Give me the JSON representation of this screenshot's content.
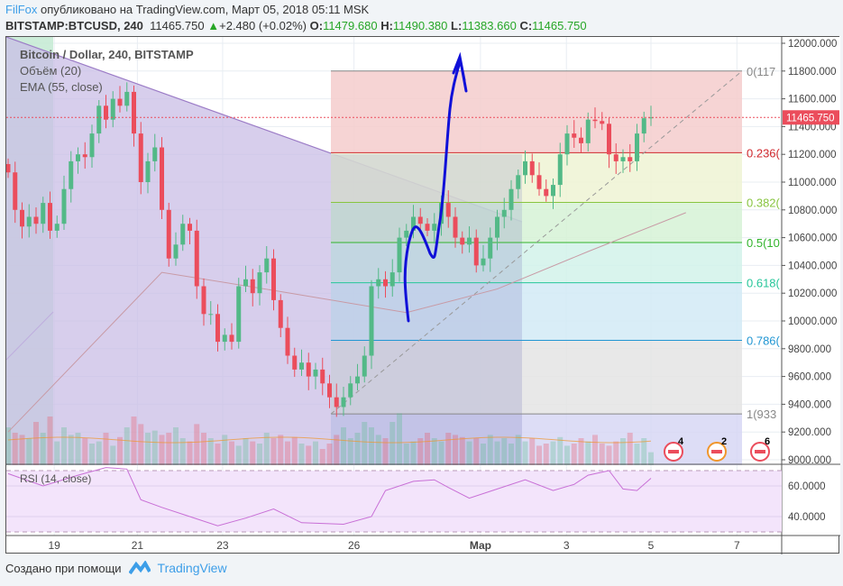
{
  "header": {
    "author": "FilFox",
    "published": "опубликовано на TradingView.com, Март 05, 2018 05:11 MSK",
    "symbol": "BITSTAMP:BTCUSD, 240",
    "last": "11465.750",
    "change": "+2.480 (+0.02%)",
    "o_label": "O:",
    "o": "11479.680",
    "h_label": "H:",
    "h": "11490.380",
    "l_label": "L:",
    "l": "11383.660",
    "c_label": "C:",
    "c": "11465.750"
  },
  "legend": {
    "main": "Bitcoin / Dollar, 240, BITSTAMP",
    "volume": "Объём (20)",
    "ema": "EMA (55, close)",
    "rsi": "RSI (14, close)"
  },
  "footer": {
    "created": "Создано при помощи",
    "brand": "TradingView"
  },
  "colors": {
    "up": "#53b987",
    "down": "#eb4d5c",
    "ema": "#c89aa5",
    "rsi": "#c86fd6",
    "arrow": "#1010d8",
    "accent": "#3d9ee8"
  },
  "chart_data": {
    "type": "candlestick",
    "y_axis": {
      "range": [
        9000,
        12000
      ],
      "ticks": [
        12000,
        11800,
        11600,
        11400,
        11200,
        11000,
        10800,
        10600,
        10400,
        10200,
        10000,
        9800,
        9600,
        9400,
        9200,
        9000
      ],
      "tick_labels": [
        "12000.000",
        "11800.000",
        "11600.000",
        "11400.000",
        "11200.000",
        "11000.000",
        "10800.000",
        "10600.000",
        "10400.000",
        "10200.000",
        "10000.000",
        "9800.000",
        "9600.000",
        "9400.000",
        "9200.000",
        "9000.000"
      ]
    },
    "x_axis": {
      "tick_labels": [
        "19",
        "21",
        "23",
        "26",
        "Мар",
        "3",
        "5",
        "7"
      ],
      "tick_candle_index": [
        6.6,
        18.5,
        30.7,
        49.5,
        67.6,
        79.9,
        92,
        104.3
      ]
    },
    "last_price_label": "11465.750",
    "closes": [
      11070,
      10800,
      10680,
      10750,
      10700,
      10850,
      10650,
      10700,
      10950,
      11150,
      11200,
      11180,
      11350,
      11550,
      11450,
      11600,
      11550,
      11650,
      11350,
      11000,
      11150,
      11250,
      10800,
      10450,
      10550,
      10700,
      10650,
      10250,
      10050,
      10050,
      9850,
      9900,
      9850,
      10250,
      10300,
      10200,
      10350,
      10450,
      10150,
      9950,
      9750,
      9650,
      9700,
      9600,
      9650,
      9550,
      9450,
      9380,
      9450,
      9550,
      9600,
      9750,
      10250,
      10300,
      10250,
      10350,
      10600,
      10650,
      10750,
      10700,
      10650,
      10700,
      10850,
      10750,
      10600,
      10550,
      10600,
      10400,
      10450,
      10600,
      10750,
      10800,
      10950,
      11050,
      11150,
      11050,
      10950,
      10900,
      10980,
      11200,
      11350,
      11320,
      11280,
      11450,
      11440,
      11420,
      11200,
      11150,
      11180,
      11150,
      11350,
      11460,
      11466
    ],
    "volume_relative": [
      35,
      30,
      28,
      25,
      40,
      30,
      45,
      22,
      35,
      28,
      30,
      25,
      20,
      22,
      30,
      18,
      26,
      35,
      45,
      38,
      30,
      32,
      28,
      30,
      35,
      25,
      22,
      38,
      30,
      25,
      20,
      28,
      22,
      18,
      25,
      22,
      20,
      30,
      25,
      28,
      22,
      26,
      20,
      18,
      22,
      15,
      20,
      28,
      35,
      25,
      30,
      40,
      35,
      28,
      25,
      40,
      48,
      20,
      22,
      25,
      30,
      25,
      22,
      30,
      28,
      26,
      22,
      25,
      20,
      28,
      22,
      25,
      20,
      28,
      22,
      25,
      18,
      20,
      22,
      26,
      18,
      20,
      25,
      22,
      28,
      20,
      18,
      22,
      25,
      30,
      20,
      25,
      12
    ],
    "ema_points": [
      [
        0,
        9200
      ],
      [
        22,
        10350
      ],
      [
        38,
        10220
      ],
      [
        57,
        10060
      ],
      [
        70,
        10230
      ],
      [
        83,
        10500
      ],
      [
        97,
        10780
      ]
    ],
    "rsi_scale": {
      "range": [
        20,
        80
      ],
      "ticks": [
        60,
        40
      ],
      "tick_labels": [
        "60.0000",
        "40.0000"
      ],
      "bands": [
        70,
        30
      ]
    },
    "rsi_points": [
      [
        0,
        68
      ],
      [
        5,
        60
      ],
      [
        10,
        67
      ],
      [
        14,
        72
      ],
      [
        17,
        71
      ],
      [
        19,
        51
      ],
      [
        22,
        46
      ],
      [
        26,
        40
      ],
      [
        30,
        34
      ],
      [
        34,
        39
      ],
      [
        38,
        45
      ],
      [
        42,
        36
      ],
      [
        48,
        35
      ],
      [
        52,
        40
      ],
      [
        54,
        57
      ],
      [
        58,
        63
      ],
      [
        61,
        64
      ],
      [
        63,
        59
      ],
      [
        66,
        52
      ],
      [
        70,
        58
      ],
      [
        74,
        64
      ],
      [
        78,
        57
      ],
      [
        81,
        61
      ],
      [
        83,
        67
      ],
      [
        86,
        70
      ],
      [
        88,
        58
      ],
      [
        90,
        57
      ],
      [
        92,
        65
      ]
    ],
    "fibonacci": {
      "levels": [
        {
          "label": "0(117",
          "price": 11800,
          "color": "#888888",
          "fill": "#f4cccc"
        },
        {
          "label": "0.236(",
          "price": 11212,
          "color": "#d0292e",
          "fill": "#eef3d4"
        },
        {
          "label": "0.382(",
          "price": 10854,
          "color": "#88c540",
          "fill": "#d6f2d6"
        },
        {
          "label": "0.5(10",
          "price": 10565,
          "color": "#32b42c",
          "fill": "#d2f2ea"
        },
        {
          "label": "0.618(",
          "price": 10275,
          "color": "#26c69a",
          "fill": "#d2eaf6"
        },
        {
          "label": "0.786(",
          "price": 9860,
          "color": "#2196d3",
          "fill": "#e4e4e4"
        },
        {
          "label": "1(933",
          "price": 9330,
          "color": "#888888",
          "fill": null
        }
      ]
    },
    "events": [
      {
        "count": "4",
        "color": "#eb4d5c"
      },
      {
        "count": "2",
        "color": "#f0962c"
      },
      {
        "count": "6",
        "color": "#eb4d5c"
      }
    ]
  }
}
